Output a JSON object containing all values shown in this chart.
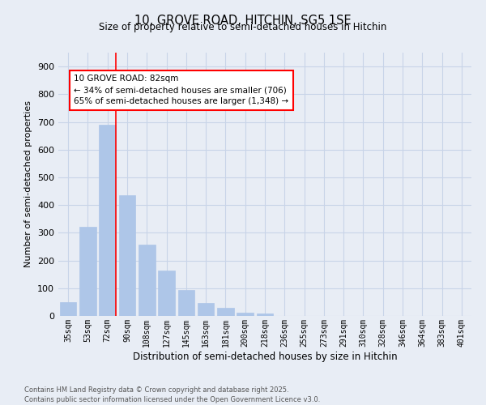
{
  "title1": "10, GROVE ROAD, HITCHIN, SG5 1SE",
  "title2": "Size of property relative to semi-detached houses in Hitchin",
  "xlabel": "Distribution of semi-detached houses by size in Hitchin",
  "ylabel": "Number of semi-detached properties",
  "categories": [
    "35sqm",
    "53sqm",
    "72sqm",
    "90sqm",
    "108sqm",
    "127sqm",
    "145sqm",
    "163sqm",
    "181sqm",
    "200sqm",
    "218sqm",
    "236sqm",
    "255sqm",
    "273sqm",
    "291sqm",
    "310sqm",
    "328sqm",
    "346sqm",
    "364sqm",
    "383sqm",
    "401sqm"
  ],
  "values": [
    50,
    323,
    690,
    435,
    258,
    165,
    95,
    47,
    30,
    13,
    10,
    0,
    0,
    0,
    0,
    0,
    0,
    0,
    0,
    0,
    0
  ],
  "bar_color": "#aec6e8",
  "bar_edge_color": "#aec6e8",
  "grid_color": "#c8d4e8",
  "background_color": "#e8edf5",
  "vline_bin": 2,
  "annotation_title": "10 GROVE ROAD: 82sqm",
  "annotation_line1": "← 34% of semi-detached houses are smaller (706)",
  "annotation_line2": "65% of semi-detached houses are larger (1,348) →",
  "footer1": "Contains HM Land Registry data © Crown copyright and database right 2025.",
  "footer2": "Contains public sector information licensed under the Open Government Licence v3.0.",
  "ylim": [
    0,
    950
  ],
  "yticks": [
    0,
    100,
    200,
    300,
    400,
    500,
    600,
    700,
    800,
    900
  ]
}
